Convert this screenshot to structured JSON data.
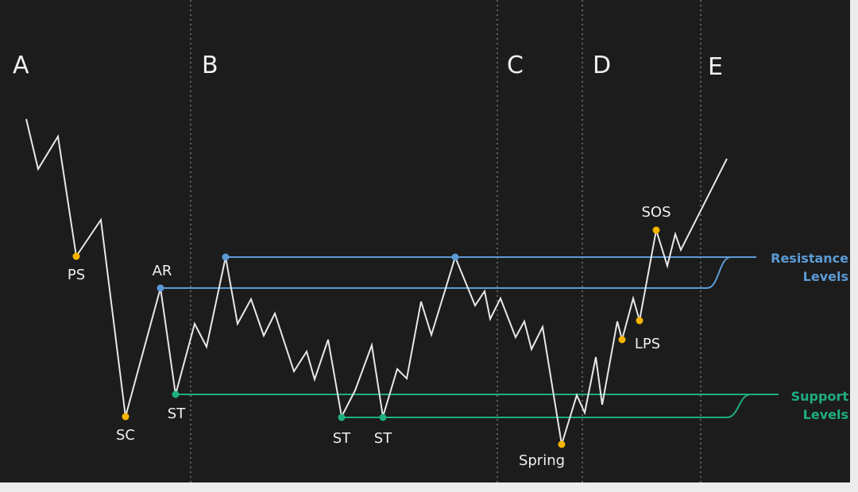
{
  "phases": [
    "A",
    "B",
    "C",
    "D",
    "E"
  ],
  "points": [
    "PS",
    "SC",
    "AR",
    "ST",
    "ST",
    "ST",
    "Spring",
    "LPS",
    "SOS"
  ],
  "levels": {
    "resistance": [
      "Resistance",
      "Levels"
    ],
    "support": [
      "Support",
      "Levels"
    ]
  }
}
